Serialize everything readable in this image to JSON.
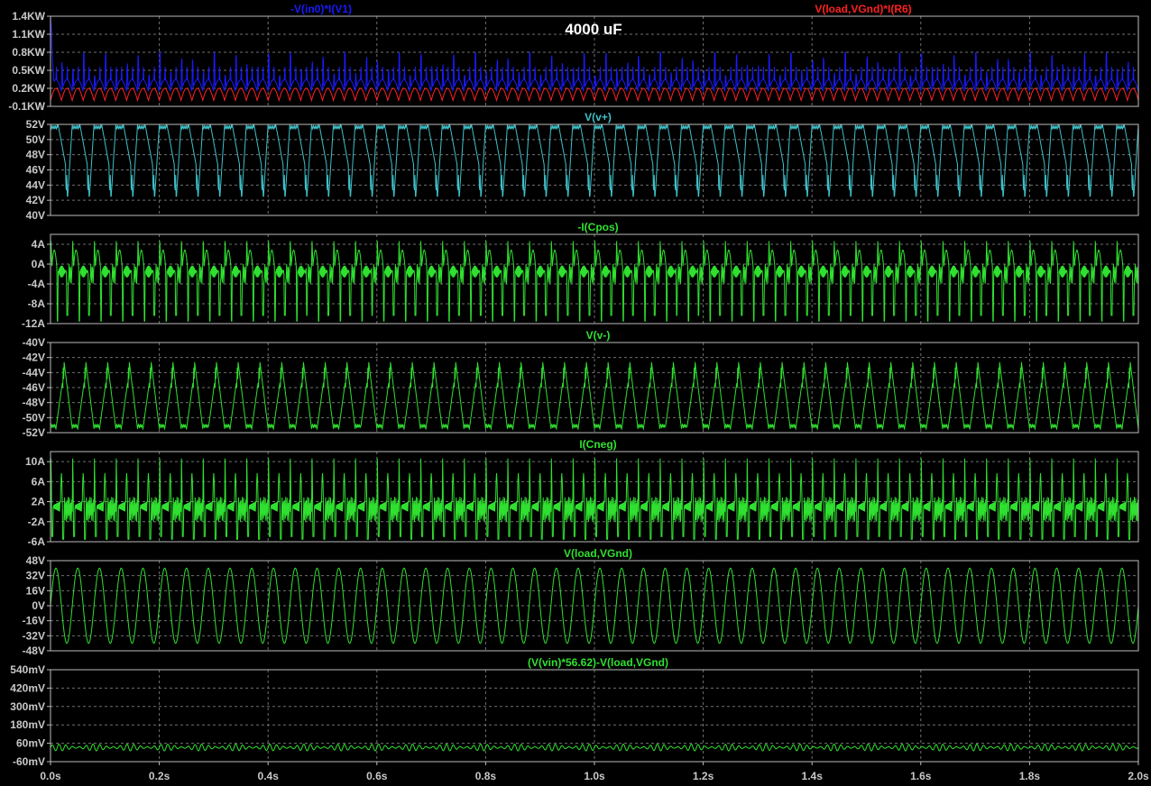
{
  "chart_data": [
    {
      "type": "line",
      "series": [
        {
          "name": "-V(in0)*I(V1)",
          "color": "#1a1aff",
          "min": 0.15,
          "max": 0.8,
          "peak_first": 1.4,
          "waveform": "spiky_power"
        },
        {
          "name": "V(load,VGnd)*I(R6)",
          "color": "#ff2020",
          "min": 0.0,
          "max": 0.2,
          "waveform": "rectified_sine"
        }
      ],
      "annotation": "4000 uF",
      "xlim": [
        0,
        2.0
      ],
      "ylim": [
        -0.1,
        1.4
      ],
      "yticks": [
        "-0.1KW",
        "0.2KW",
        "0.5KW",
        "0.8KW",
        "1.1KW",
        "1.4KW"
      ],
      "ytick_values": [
        -0.1,
        0.2,
        0.5,
        0.8,
        1.1,
        1.4
      ]
    },
    {
      "type": "line",
      "series": [
        {
          "name": "V(v+)",
          "color": "#3fc0c8",
          "min": 42,
          "max": 52,
          "waveform": "supply_ripple_pos"
        }
      ],
      "xlim": [
        0,
        2.0
      ],
      "ylim": [
        40,
        52
      ],
      "yticks": [
        "40V",
        "42V",
        "44V",
        "46V",
        "48V",
        "50V",
        "52V"
      ],
      "ytick_values": [
        40,
        42,
        44,
        46,
        48,
        50,
        52
      ]
    },
    {
      "type": "line",
      "series": [
        {
          "name": "-I(Cpos)",
          "color": "#30e030",
          "min": -11.5,
          "max": 4.8,
          "waveform": "cap_current_pos"
        }
      ],
      "xlim": [
        0,
        2.0
      ],
      "ylim": [
        -12,
        6
      ],
      "yticks": [
        "-12A",
        "-8A",
        "-4A",
        "0A",
        "4A"
      ],
      "ytick_values": [
        -12,
        -8,
        -4,
        0,
        4
      ]
    },
    {
      "type": "line",
      "series": [
        {
          "name": "V(v-)",
          "color": "#30e030",
          "min": -51.5,
          "max": -42.5,
          "waveform": "supply_ripple_neg"
        }
      ],
      "xlim": [
        0,
        2.0
      ],
      "ylim": [
        -52,
        -40
      ],
      "yticks": [
        "-52V",
        "-50V",
        "-48V",
        "-46V",
        "-44V",
        "-42V",
        "-40V"
      ],
      "ytick_values": [
        -52,
        -50,
        -48,
        -46,
        -44,
        -42,
        -40
      ]
    },
    {
      "type": "line",
      "series": [
        {
          "name": "I(Cneg)",
          "color": "#30e030",
          "min": -5.5,
          "max": 11,
          "waveform": "cap_current_neg"
        }
      ],
      "xlim": [
        0,
        2.0
      ],
      "ylim": [
        -6,
        12
      ],
      "yticks": [
        "-6A",
        "-2A",
        "2A",
        "6A",
        "10A"
      ],
      "ytick_values": [
        -6,
        -2,
        2,
        6,
        10
      ]
    },
    {
      "type": "line",
      "series": [
        {
          "name": "V(load,VGnd)",
          "color": "#30e030",
          "min": -40,
          "max": 40,
          "frequency": 25,
          "waveform": "sine"
        }
      ],
      "xlim": [
        0,
        2.0
      ],
      "ylim": [
        -48,
        48
      ],
      "yticks": [
        "-48V",
        "-32V",
        "-16V",
        "0V",
        "16V",
        "32V",
        "48V"
      ],
      "ytick_values": [
        -48,
        -32,
        -16,
        0,
        16,
        32,
        48
      ]
    },
    {
      "type": "line",
      "series": [
        {
          "name": "(V(vin)*56.62)-V(load,VGnd)",
          "color": "#30e030",
          "min": 10,
          "max": 55,
          "waveform": "small_ripple"
        }
      ],
      "xlim": [
        0,
        2.0
      ],
      "ylim": [
        -60,
        540
      ],
      "yticks": [
        "-60mV",
        "60mV",
        "180mV",
        "300mV",
        "420mV",
        "540mV"
      ],
      "ytick_values": [
        -60,
        60,
        180,
        300,
        420,
        540
      ]
    }
  ],
  "x_axis": {
    "tick_labels": [
      "0.0s",
      "0.2s",
      "0.4s",
      "0.6s",
      "0.8s",
      "1.0s",
      "1.2s",
      "1.4s",
      "1.6s",
      "1.8s",
      "2.0s"
    ],
    "tick_values": [
      0,
      0.2,
      0.4,
      0.6,
      0.8,
      1.0,
      1.2,
      1.4,
      1.6,
      1.8,
      2.0
    ]
  },
  "colors": {
    "background": "#000000",
    "frame": "#bdbdbd",
    "grid": "#707070",
    "tick_text": "#c8c8c8"
  }
}
